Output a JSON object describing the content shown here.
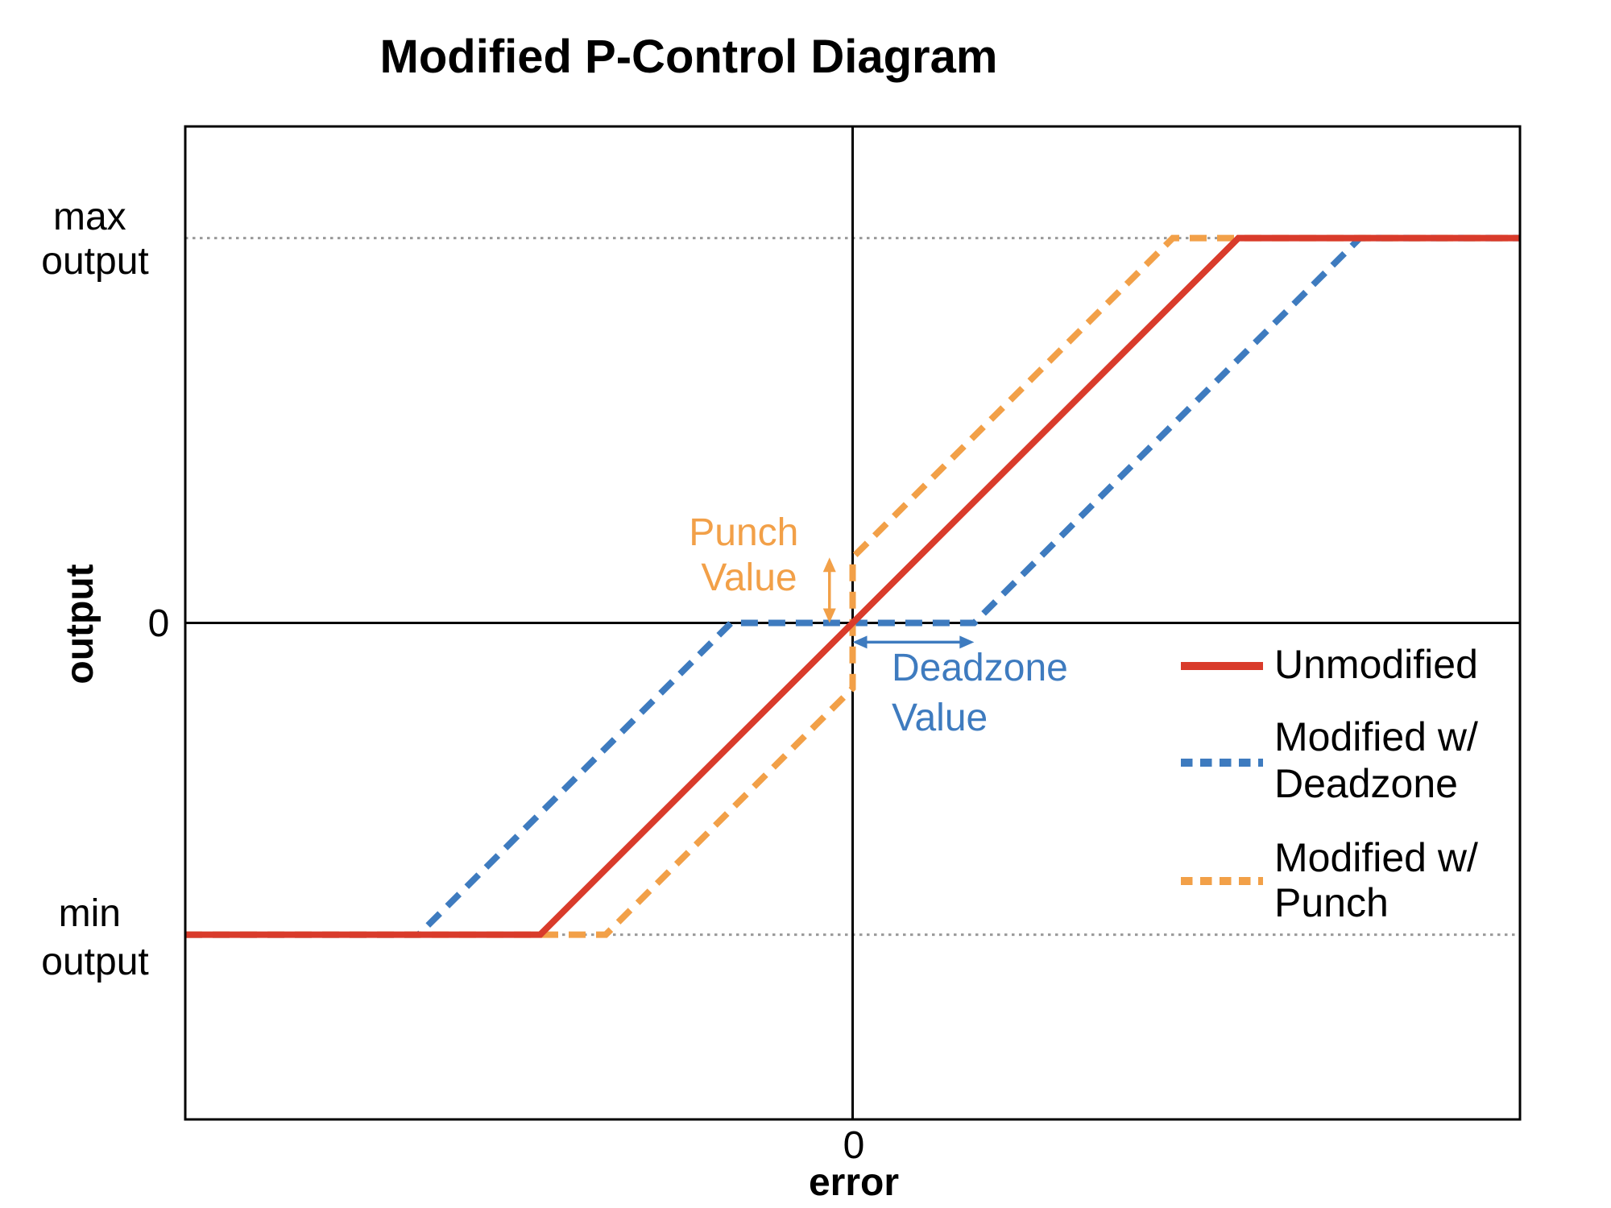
{
  "title": "Modified P-Control Diagram",
  "colors": {
    "red": "#d93b2b",
    "blue": "#3e7bbf",
    "orange": "#f2a048",
    "axis": "#000000",
    "reference": "#999999"
  },
  "chart_data": {
    "type": "line",
    "title": "Modified P-Control Diagram",
    "xlabel": "error",
    "ylabel": "output",
    "xlim": [
      -1.73,
      1.73
    ],
    "ylim": [
      -1.29,
      1.29
    ],
    "grid": false,
    "legend_position": "right-center",
    "x_ticks": [
      {
        "value": 0,
        "label": "0"
      }
    ],
    "y_ticks": [
      {
        "value": 1.0,
        "lines": [
          "max",
          "output"
        ]
      },
      {
        "value": 0,
        "lines": [
          "0"
        ]
      },
      {
        "value": -0.81,
        "lines": [
          "min",
          "output"
        ]
      }
    ],
    "reference_lines": [
      {
        "y": 1.0,
        "role": "max-output-level"
      },
      {
        "y": -0.81,
        "role": "min-output-level"
      }
    ],
    "deadzone_value": 0.315,
    "punch_value": 0.17,
    "series": [
      {
        "name": "Unmodified",
        "color_key": "red",
        "style": "solid",
        "z": 3,
        "points": [
          [
            -1.73,
            -0.81
          ],
          [
            -0.81,
            -0.81
          ],
          [
            1.0,
            1.0
          ],
          [
            1.73,
            1.0
          ]
        ]
      },
      {
        "name": "Modified w/ Deadzone",
        "color_key": "blue",
        "style": "dashed",
        "z": 1,
        "points": [
          [
            -1.73,
            -0.81
          ],
          [
            -1.125,
            -0.81
          ],
          [
            -0.315,
            0
          ],
          [
            0.315,
            0
          ],
          [
            1.315,
            1.0
          ],
          [
            1.73,
            1.0
          ]
        ]
      },
      {
        "name": "Modified w/ Punch",
        "color_key": "orange",
        "style": "dashed",
        "z": 2,
        "points": [
          [
            -1.73,
            -0.81
          ],
          [
            -0.64,
            -0.81
          ],
          [
            0,
            -0.17
          ],
          [
            0,
            0.17
          ],
          [
            0.83,
            1.0
          ],
          [
            1.73,
            1.0
          ]
        ]
      }
    ],
    "annotations": [
      {
        "id": "punch",
        "lines": [
          "Punch",
          "Value"
        ],
        "color_key": "orange",
        "arrow": {
          "from": [
            -0.06,
            0.0
          ],
          "to": [
            -0.06,
            0.17
          ],
          "double": true
        }
      },
      {
        "id": "deadzone",
        "lines": [
          "Deadzone",
          "Value"
        ],
        "color_key": "blue",
        "arrow": {
          "from": [
            0.0,
            -0.05
          ],
          "to": [
            0.315,
            -0.05
          ],
          "double": true
        }
      }
    ]
  },
  "legend": {
    "items": [
      {
        "label_lines": [
          "Unmodified"
        ],
        "color_key": "red",
        "style": "solid"
      },
      {
        "label_lines": [
          "Modified w/",
          "Deadzone"
        ],
        "color_key": "blue",
        "style": "dashed"
      },
      {
        "label_lines": [
          "Modified w/",
          "Punch"
        ],
        "color_key": "orange",
        "style": "dashed"
      }
    ]
  }
}
